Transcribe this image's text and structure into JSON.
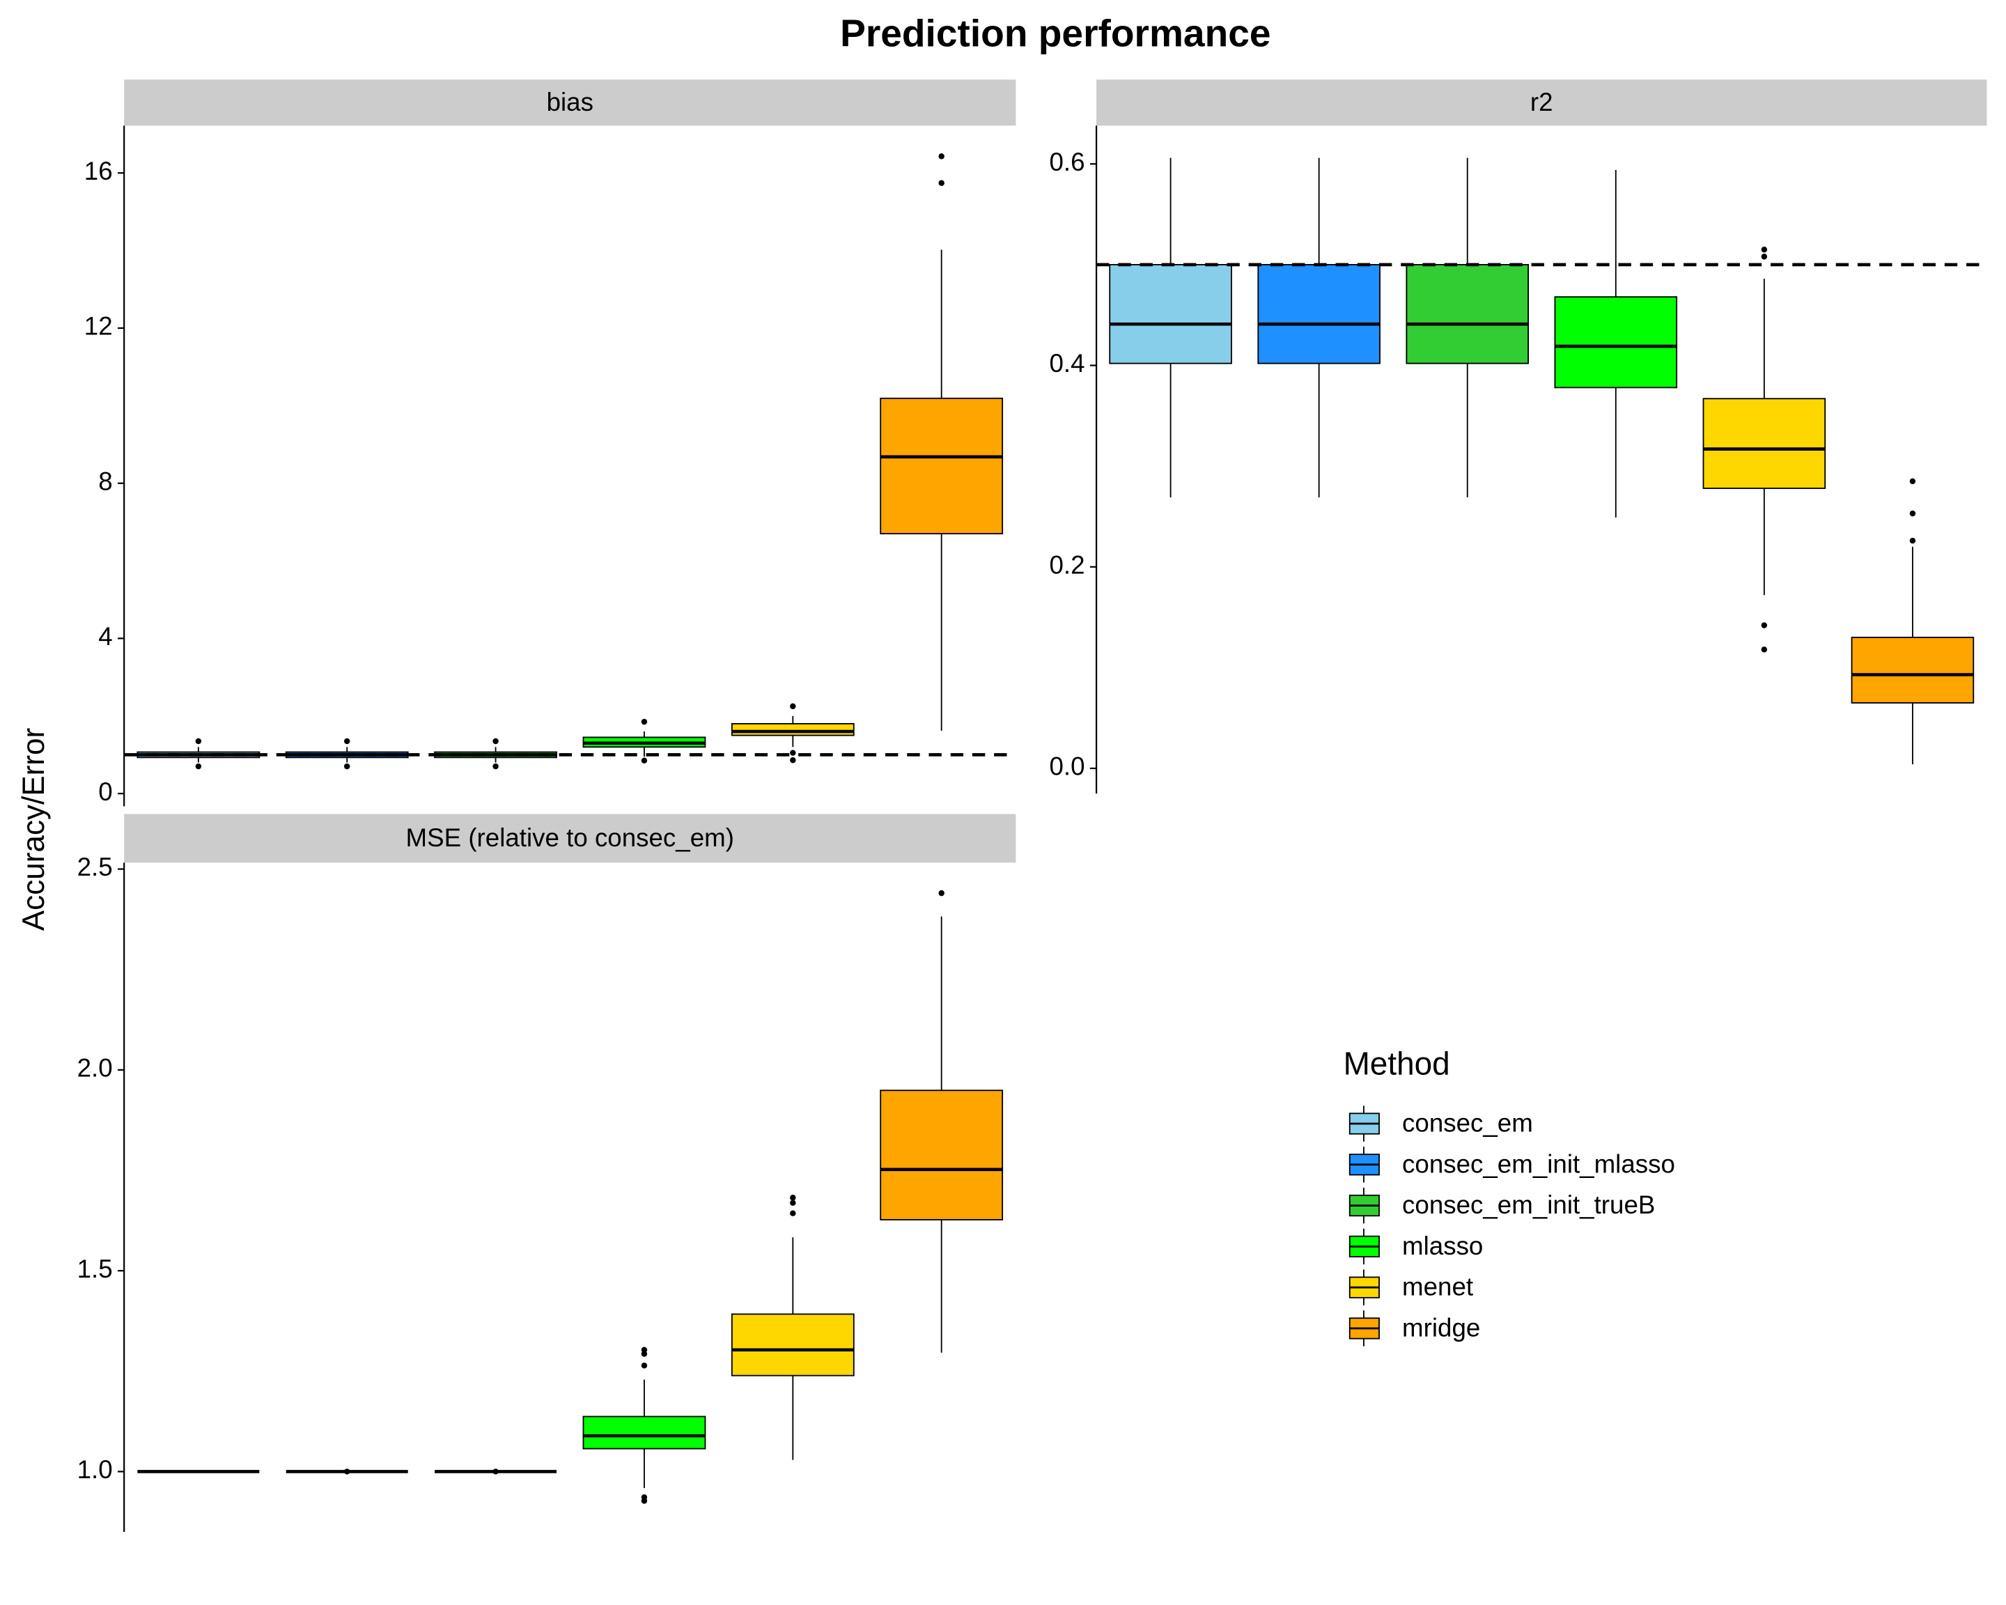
{
  "title": "Prediction performance",
  "y_label": "Accuracy/Error",
  "legend": {
    "title": "Method",
    "names": [
      "consec_em",
      "consec_em_init_mlasso",
      "consec_em_init_trueB",
      "mlasso",
      "menet",
      "mridge"
    ],
    "colors": [
      "#87CEEB",
      "#1E90FF",
      "#32CD32",
      "#00FF00",
      "#FFD700",
      "#FFA500"
    ]
  },
  "chart_data": [
    {
      "type": "box",
      "panel": "bias",
      "ylim": [
        -0.33,
        17.22
      ],
      "yticks": [
        0,
        4,
        8,
        12,
        16
      ],
      "hline": 1,
      "boxes": [
        {
          "whislo": 0.8,
          "q1": 0.93,
          "med": 1.0,
          "q3": 1.07,
          "whishi": 1.2,
          "outliers": [
            1.35,
            0.7
          ]
        },
        {
          "whislo": 0.8,
          "q1": 0.93,
          "med": 1.0,
          "q3": 1.07,
          "whishi": 1.2,
          "outliers": [
            1.35,
            0.7
          ]
        },
        {
          "whislo": 0.8,
          "q1": 0.93,
          "med": 1.0,
          "q3": 1.07,
          "whishi": 1.2,
          "outliers": [
            1.35,
            0.7
          ]
        },
        {
          "whislo": 0.95,
          "q1": 1.2,
          "med": 1.3,
          "q3": 1.45,
          "whishi": 1.6,
          "outliers": [
            1.85,
            0.85
          ]
        },
        {
          "whislo": 1.2,
          "q1": 1.5,
          "med": 1.6,
          "q3": 1.8,
          "whishi": 2.0,
          "outliers": [
            2.25,
            1.05,
            0.86
          ]
        },
        {
          "whislo": 1.62,
          "q1": 6.7,
          "med": 8.68,
          "q3": 10.19,
          "whishi": 14.02,
          "outliers": [
            16.43,
            15.74
          ]
        }
      ]
    },
    {
      "type": "box",
      "panel": "r2",
      "ylim": [
        -0.025,
        0.638
      ],
      "yticks": [
        {
          "value": 0,
          "label": "0.0"
        },
        0.2,
        0.4,
        0.6
      ],
      "hline": 0.5,
      "boxes": [
        {
          "whislo": 0.269,
          "q1": 0.402,
          "med": 0.441,
          "q3": 0.5,
          "whishi": 0.606,
          "outliers": []
        },
        {
          "whislo": 0.269,
          "q1": 0.402,
          "med": 0.441,
          "q3": 0.5,
          "whishi": 0.606,
          "outliers": []
        },
        {
          "whislo": 0.269,
          "q1": 0.402,
          "med": 0.441,
          "q3": 0.5,
          "whishi": 0.606,
          "outliers": []
        },
        {
          "whislo": 0.249,
          "q1": 0.378,
          "med": 0.419,
          "q3": 0.468,
          "whishi": 0.594,
          "outliers": []
        },
        {
          "whislo": 0.172,
          "q1": 0.278,
          "med": 0.317,
          "q3": 0.367,
          "whishi": 0.486,
          "outliers": [
            0.515,
            0.508,
            0.142,
            0.118
          ]
        },
        {
          "whislo": 0.004,
          "q1": 0.065,
          "med": 0.093,
          "q3": 0.13,
          "whishi": 0.22,
          "outliers": [
            0.285,
            0.253,
            0.226
          ]
        }
      ]
    },
    {
      "type": "box",
      "panel": "MSE (relative to consec_em)",
      "ylim": [
        0.85,
        2.516
      ],
      "yticks": [
        {
          "value": 1,
          "label": "1.0"
        },
        1.5,
        {
          "value": 2,
          "label": "2.0"
        },
        2.5
      ],
      "boxes": [
        {
          "whislo": 1,
          "q1": 1,
          "med": 1,
          "q3": 1,
          "whishi": 1,
          "outliers": []
        },
        {
          "whislo": 1,
          "q1": 1,
          "med": 1,
          "q3": 1,
          "whishi": 1,
          "outliers": [
            1
          ]
        },
        {
          "whislo": 1,
          "q1": 1,
          "med": 1,
          "q3": 1,
          "whishi": 1,
          "outliers": [
            1
          ]
        },
        {
          "whislo": 0.959,
          "q1": 1.057,
          "med": 1.089,
          "q3": 1.137,
          "whishi": 1.229,
          "outliers": [
            1.264,
            1.293,
            1.303,
            0.936,
            0.927
          ]
        },
        {
          "whislo": 1.029,
          "q1": 1.239,
          "med": 1.303,
          "q3": 1.392,
          "whishi": 1.583,
          "outliers": [
            1.643,
            1.669,
            1.682
          ]
        },
        {
          "whislo": 1.296,
          "q1": 1.627,
          "med": 1.752,
          "q3": 1.949,
          "whishi": 2.382,
          "outliers": [
            2.44
          ]
        }
      ]
    }
  ]
}
